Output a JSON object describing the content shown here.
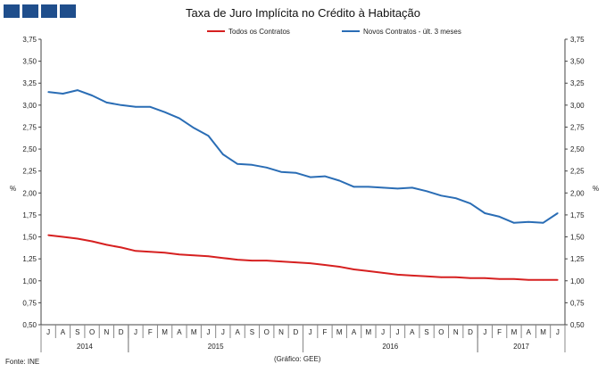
{
  "header": {
    "title": "Taxa de Juro Implícita no Crédito à Habitação"
  },
  "footer": {
    "source": "Fonte: INE",
    "chart_note": "(Gráfico: GEE)"
  },
  "colors": {
    "series1": "#d62020",
    "series2": "#2a6db5",
    "logo": "#1f4e8c"
  },
  "chart_data": {
    "type": "line",
    "title": "Taxa de Juro Implícita no Crédito à Habitação",
    "ylabel_left": "%",
    "ylabel_right": "%",
    "ylim": [
      0.5,
      3.75
    ],
    "yticks": [
      "0,50",
      "0,75",
      "1,00",
      "1,25",
      "1,50",
      "1,75",
      "2,00",
      "2,25",
      "2,50",
      "2,75",
      "3,00",
      "3,25",
      "3,50",
      "3,75"
    ],
    "month_labels": [
      "J",
      "A",
      "S",
      "O",
      "N",
      "D",
      "J",
      "F",
      "M",
      "A",
      "M",
      "J",
      "J",
      "A",
      "S",
      "O",
      "N",
      "D",
      "J",
      "F",
      "M",
      "A",
      "M",
      "J",
      "J",
      "A",
      "S",
      "O",
      "N",
      "D",
      "J",
      "F",
      "M",
      "A",
      "M",
      "J"
    ],
    "year_labels": [
      {
        "label": "2014",
        "start": 0,
        "end": 5
      },
      {
        "label": "2015",
        "start": 6,
        "end": 17
      },
      {
        "label": "2016",
        "start": 18,
        "end": 29
      },
      {
        "label": "2017",
        "start": 30,
        "end": 35
      }
    ],
    "series": [
      {
        "name": "Todos os Contratos",
        "values": [
          1.52,
          1.5,
          1.48,
          1.45,
          1.41,
          1.38,
          1.34,
          1.33,
          1.32,
          1.3,
          1.29,
          1.28,
          1.26,
          1.24,
          1.23,
          1.23,
          1.22,
          1.21,
          1.2,
          1.18,
          1.16,
          1.13,
          1.11,
          1.09,
          1.07,
          1.06,
          1.05,
          1.04,
          1.04,
          1.03,
          1.03,
          1.02,
          1.02,
          1.01,
          1.01,
          1.01
        ]
      },
      {
        "name": "Novos Contratos - últ. 3 meses",
        "values": [
          3.15,
          3.13,
          3.17,
          3.11,
          3.03,
          3.0,
          2.98,
          2.98,
          2.92,
          2.85,
          2.74,
          2.65,
          2.44,
          2.33,
          2.32,
          2.29,
          2.24,
          2.23,
          2.18,
          2.19,
          2.14,
          2.07,
          2.07,
          2.06,
          2.05,
          2.06,
          2.02,
          1.97,
          1.94,
          1.88,
          1.77,
          1.73,
          1.66,
          1.67,
          1.66,
          1.77
        ]
      }
    ]
  }
}
